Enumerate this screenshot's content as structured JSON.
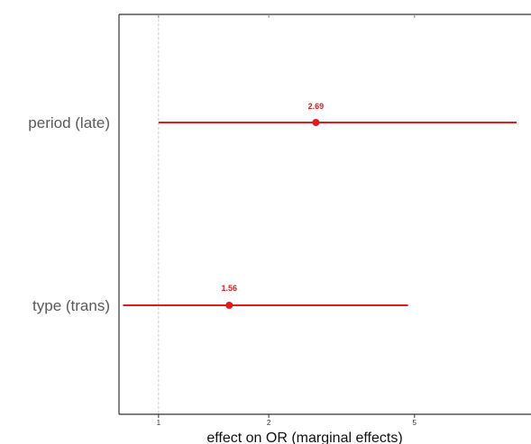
{
  "chart_data": {
    "type": "forest",
    "xlabel": "effect on OR (marginal effects)",
    "x_scale": "log",
    "xlim": [
      0.78,
      10.4
    ],
    "x_ticks": [
      {
        "value": 1,
        "label": "1"
      },
      {
        "value": 2,
        "label": "2"
      },
      {
        "value": 5,
        "label": "5"
      }
    ],
    "reference_line": 1,
    "categories": [
      "period (late)",
      "type (trans)"
    ],
    "estimates": [
      {
        "category": "period (late)",
        "value": 2.69,
        "label": "2.69",
        "ci": [
          1.0,
          10.4
        ]
      },
      {
        "category": "type (trans)",
        "value": 1.56,
        "label": "1.56",
        "ci": [
          0.8,
          4.8
        ]
      }
    ],
    "color": "#e41a1c",
    "grid": false
  }
}
